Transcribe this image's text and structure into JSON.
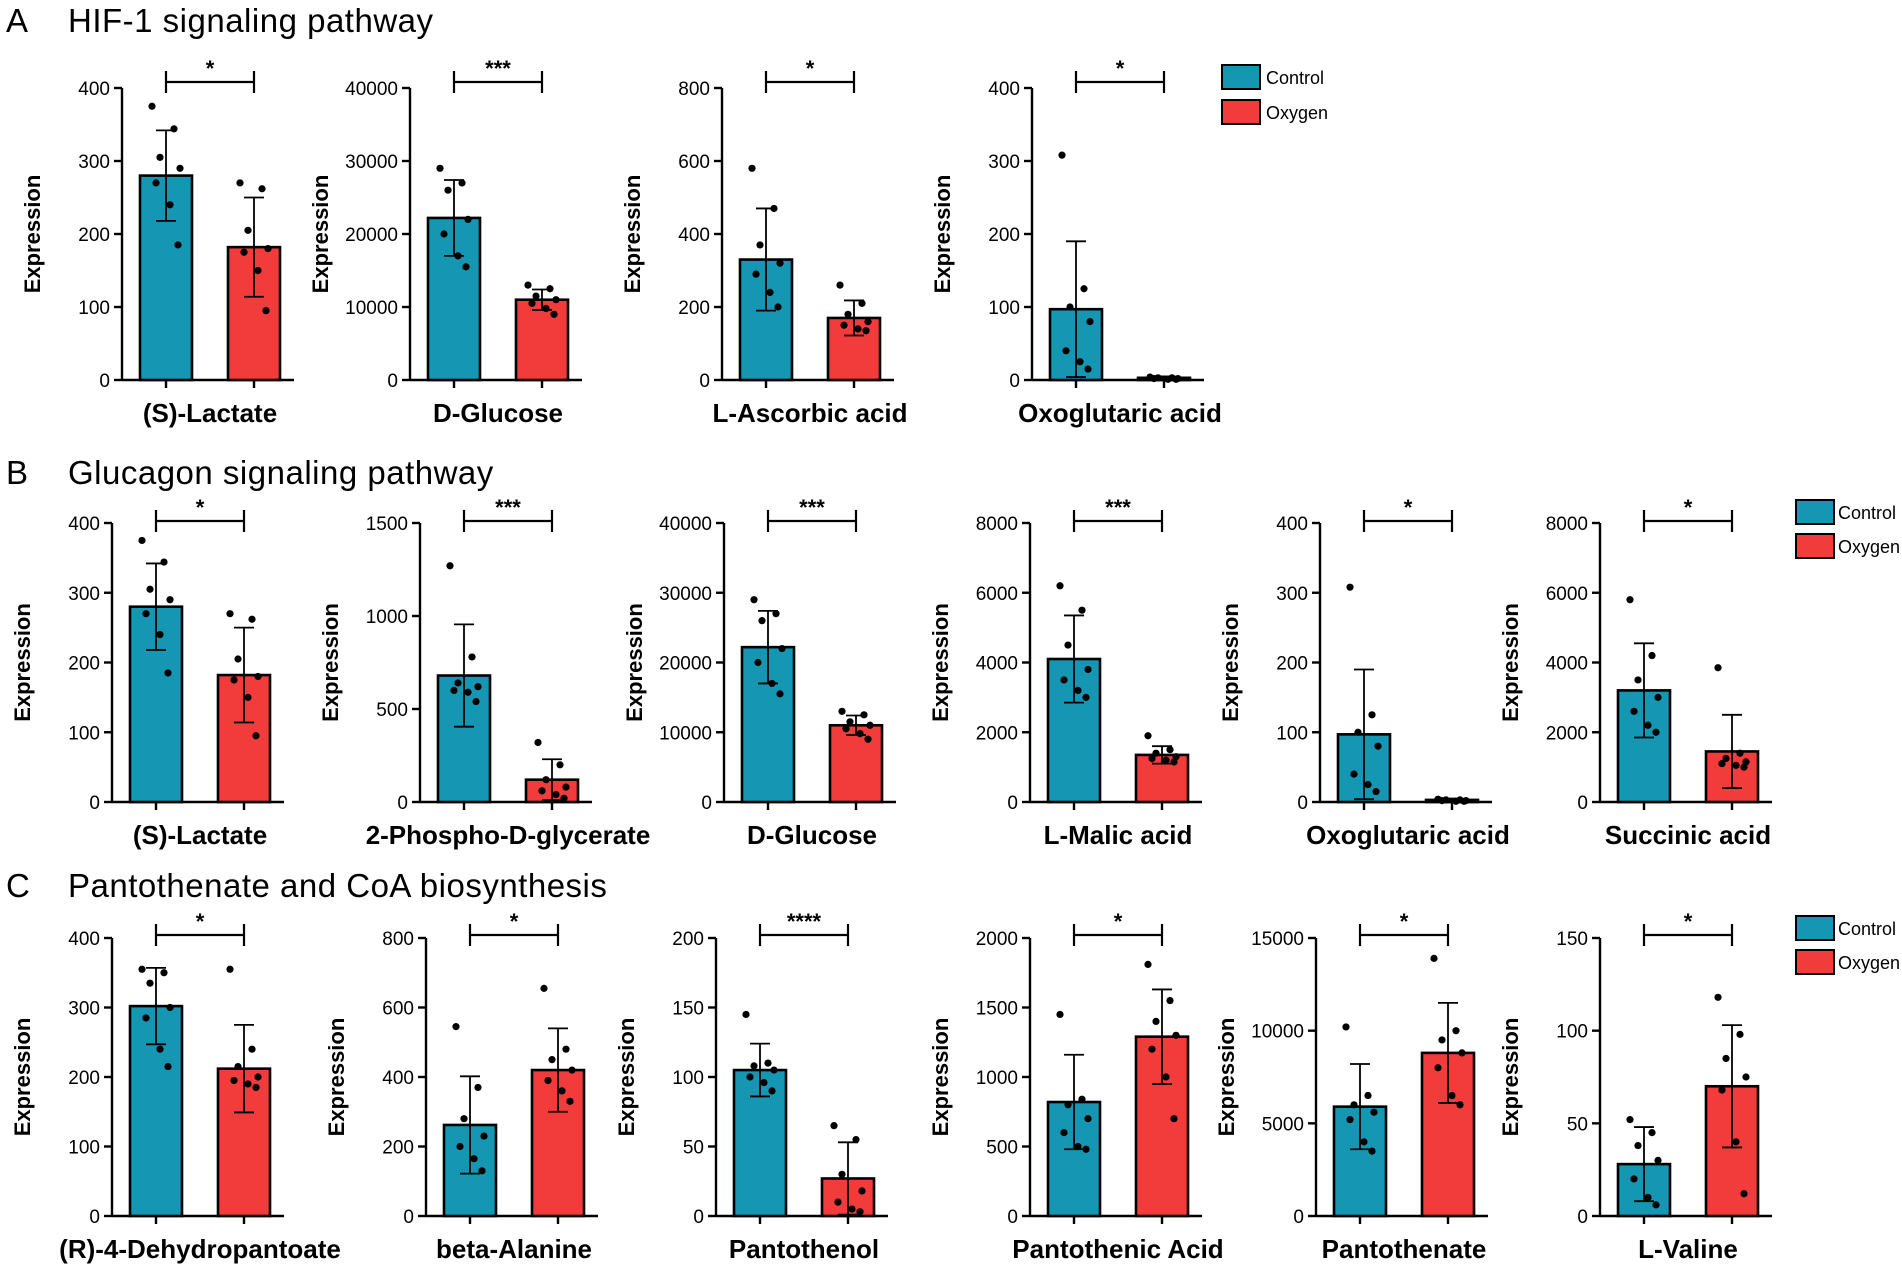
{
  "colors": {
    "control": "#1597B3",
    "oxygen": "#F23B3B",
    "axis": "#000000"
  },
  "panels": [
    {
      "letter": "A",
      "title": "HIF-1 signaling pathway",
      "legend": [
        "Control",
        "Oxygen"
      ]
    },
    {
      "letter": "B",
      "title": "Glucagon signaling pathway",
      "legend": [
        "Control",
        "Oxygen"
      ]
    },
    {
      "letter": "C",
      "title": "Pantothenate and CoA biosynthesis",
      "legend": [
        "Control",
        "Oxygen"
      ]
    }
  ],
  "chart_data": [
    {
      "id": "A1",
      "panel": "A",
      "type": "bar",
      "title": "(S)-Lactate",
      "ylabel": "Expression",
      "xlabel": "(S)-Lactate",
      "categories": [
        "Control",
        "Oxygen"
      ],
      "ylim": [
        0,
        400
      ],
      "yticks": [
        0,
        100,
        200,
        300,
        400
      ],
      "yticklabels": [
        "0",
        "100",
        "200",
        "300",
        "400"
      ],
      "values": [
        280,
        182
      ],
      "errors": [
        62,
        68
      ],
      "significance": "*",
      "points": [
        [
          375,
          344,
          305,
          290,
          270,
          240,
          185
        ],
        [
          270,
          262,
          205,
          180,
          175,
          150,
          95
        ]
      ]
    },
    {
      "id": "A2",
      "panel": "A",
      "type": "bar",
      "title": "D-Glucose",
      "ylabel": "Expression",
      "xlabel": "D-Glucose",
      "categories": [
        "Control",
        "Oxygen"
      ],
      "ylim": [
        0,
        40000
      ],
      "yticks": [
        0,
        10000,
        20000,
        30000,
        40000
      ],
      "yticklabels": [
        "0",
        "10000",
        "20000",
        "30000",
        "40000"
      ],
      "values": [
        22200,
        11000
      ],
      "errors": [
        5200,
        1400
      ],
      "significance": "***",
      "points": [
        [
          29000,
          27000,
          26000,
          22000,
          20000,
          17000,
          15500
        ],
        [
          13000,
          12500,
          11500,
          11000,
          10500,
          9800,
          9000
        ]
      ]
    },
    {
      "id": "A3",
      "panel": "A",
      "type": "bar",
      "title": "L-Ascorbic acid",
      "ylabel": "Expression",
      "xlabel": "L-Ascorbic acid",
      "categories": [
        "Control",
        "Oxygen"
      ],
      "ylim": [
        0,
        800
      ],
      "yticks": [
        0,
        200,
        400,
        600,
        800
      ],
      "yticklabels": [
        "0",
        "200",
        "400",
        "600",
        "800"
      ],
      "values": [
        330,
        170
      ],
      "errors": [
        140,
        48
      ],
      "significance": "*",
      "points": [
        [
          580,
          470,
          370,
          320,
          290,
          240,
          200
        ],
        [
          260,
          210,
          180,
          160,
          150,
          140,
          135
        ]
      ]
    },
    {
      "id": "A4",
      "panel": "A",
      "type": "bar",
      "title": "Oxoglutaric acid",
      "ylabel": "Expression",
      "xlabel": "Oxoglutaric acid",
      "categories": [
        "Control",
        "Oxygen"
      ],
      "ylim": [
        0,
        400
      ],
      "yticks": [
        0,
        100,
        200,
        300,
        400
      ],
      "yticklabels": [
        "0",
        "100",
        "200",
        "300",
        "400"
      ],
      "values": [
        97,
        3
      ],
      "errors": [
        93,
        2
      ],
      "significance": "*",
      "points": [
        [
          308,
          125,
          100,
          80,
          40,
          25,
          15
        ],
        [
          4,
          3,
          3,
          2,
          2,
          1,
          1
        ]
      ]
    },
    {
      "id": "B1",
      "panel": "B",
      "type": "bar",
      "title": "(S)-Lactate",
      "ylabel": "Expression",
      "xlabel": "(S)-Lactate",
      "categories": [
        "Control",
        "Oxygen"
      ],
      "ylim": [
        0,
        400
      ],
      "yticks": [
        0,
        100,
        200,
        300,
        400
      ],
      "yticklabels": [
        "0",
        "100",
        "200",
        "300",
        "400"
      ],
      "values": [
        280,
        182
      ],
      "errors": [
        62,
        68
      ],
      "significance": "*",
      "points": [
        [
          375,
          344,
          305,
          290,
          270,
          240,
          185
        ],
        [
          270,
          262,
          205,
          180,
          175,
          150,
          95
        ]
      ]
    },
    {
      "id": "B2",
      "panel": "B",
      "type": "bar",
      "title": "2-Phospho-D-glycerate",
      "ylabel": "Expression",
      "xlabel": "2-Phospho-D-glycerate",
      "categories": [
        "Control",
        "Oxygen"
      ],
      "ylim": [
        0,
        1500
      ],
      "yticks": [
        0,
        500,
        1000,
        1500
      ],
      "yticklabels": [
        "0",
        "500",
        "1000",
        "1500"
      ],
      "values": [
        680,
        120
      ],
      "errors": [
        275,
        110
      ],
      "significance": "***",
      "points": [
        [
          1270,
          780,
          640,
          620,
          600,
          590,
          540
        ],
        [
          320,
          200,
          120,
          80,
          60,
          40,
          20
        ]
      ]
    },
    {
      "id": "B3",
      "panel": "B",
      "type": "bar",
      "title": "D-Glucose",
      "ylabel": "Expression",
      "xlabel": "D-Glucose",
      "categories": [
        "Control",
        "Oxygen"
      ],
      "ylim": [
        0,
        40000
      ],
      "yticks": [
        0,
        10000,
        20000,
        30000,
        40000
      ],
      "yticklabels": [
        "0",
        "10000",
        "20000",
        "30000",
        "40000"
      ],
      "values": [
        22200,
        11000
      ],
      "errors": [
        5200,
        1400
      ],
      "significance": "***",
      "points": [
        [
          29000,
          27000,
          26000,
          22000,
          20000,
          17000,
          15500
        ],
        [
          13000,
          12500,
          11500,
          11000,
          10500,
          9800,
          9000
        ]
      ]
    },
    {
      "id": "B4",
      "panel": "B",
      "type": "bar",
      "title": "L-Malic acid",
      "ylabel": "Expression",
      "xlabel": "L-Malic acid",
      "categories": [
        "Control",
        "Oxygen"
      ],
      "ylim": [
        0,
        8000
      ],
      "yticks": [
        0,
        2000,
        4000,
        6000,
        8000
      ],
      "yticklabels": [
        "0",
        "2000",
        "4000",
        "6000",
        "8000"
      ],
      "values": [
        4100,
        1350
      ],
      "errors": [
        1250,
        250
      ],
      "significance": "***",
      "points": [
        [
          6200,
          5500,
          4500,
          3800,
          3500,
          3200,
          3000
        ],
        [
          1900,
          1500,
          1400,
          1300,
          1250,
          1200,
          1150
        ]
      ]
    },
    {
      "id": "B5",
      "panel": "B",
      "type": "bar",
      "title": "Oxoglutaric acid",
      "ylabel": "Expression",
      "xlabel": "Oxoglutaric acid",
      "categories": [
        "Control",
        "Oxygen"
      ],
      "ylim": [
        0,
        400
      ],
      "yticks": [
        0,
        100,
        200,
        300,
        400
      ],
      "yticklabels": [
        "0",
        "100",
        "200",
        "300",
        "400"
      ],
      "values": [
        97,
        3
      ],
      "errors": [
        93,
        2
      ],
      "significance": "*",
      "points": [
        [
          308,
          125,
          100,
          80,
          40,
          25,
          15
        ],
        [
          4,
          3,
          3,
          2,
          2,
          1,
          1
        ]
      ]
    },
    {
      "id": "B6",
      "panel": "B",
      "type": "bar",
      "title": "Succinic acid",
      "ylabel": "Expression",
      "xlabel": "Succinic acid",
      "categories": [
        "Control",
        "Oxygen"
      ],
      "ylim": [
        0,
        8000
      ],
      "yticks": [
        0,
        2000,
        4000,
        6000,
        8000
      ],
      "yticklabels": [
        "0",
        "2000",
        "4000",
        "6000",
        "8000"
      ],
      "values": [
        3200,
        1450
      ],
      "errors": [
        1350,
        1050
      ],
      "significance": "*",
      "points": [
        [
          5800,
          4200,
          3500,
          3000,
          2600,
          2200,
          2000
        ],
        [
          3850,
          1400,
          1250,
          1150,
          1100,
          1050,
          1000
        ]
      ]
    },
    {
      "id": "C1",
      "panel": "C",
      "type": "bar",
      "title": "(R)-4-Dehydropantoate",
      "ylabel": "Expression",
      "xlabel": "(R)-4-Dehydropantoate",
      "categories": [
        "Control",
        "Oxygen"
      ],
      "ylim": [
        0,
        400
      ],
      "yticks": [
        0,
        100,
        200,
        300,
        400
      ],
      "yticklabels": [
        "0",
        "100",
        "200",
        "300",
        "400"
      ],
      "values": [
        302,
        212
      ],
      "errors": [
        55,
        63
      ],
      "significance": "*",
      "points": [
        [
          355,
          350,
          335,
          300,
          285,
          240,
          215
        ],
        [
          355,
          240,
          215,
          200,
          195,
          190,
          185
        ]
      ]
    },
    {
      "id": "C2",
      "panel": "C",
      "type": "bar",
      "title": "beta-Alanine",
      "ylabel": "Expression",
      "xlabel": "beta-Alanine",
      "categories": [
        "Control",
        "Oxygen"
      ],
      "ylim": [
        0,
        800
      ],
      "yticks": [
        0,
        200,
        400,
        600,
        800
      ],
      "yticklabels": [
        "0",
        "200",
        "400",
        "600",
        "800"
      ],
      "values": [
        262,
        420
      ],
      "errors": [
        140,
        120
      ],
      "significance": "*",
      "points": [
        [
          545,
          370,
          280,
          230,
          200,
          165,
          130
        ],
        [
          655,
          480,
          450,
          420,
          390,
          360,
          330
        ]
      ]
    },
    {
      "id": "C3",
      "panel": "C",
      "type": "bar",
      "title": "Pantothenol",
      "ylabel": "Expression",
      "xlabel": "Pantothenol",
      "categories": [
        "Control",
        "Oxygen"
      ],
      "ylim": [
        0,
        200
      ],
      "yticks": [
        0,
        50,
        100,
        150,
        200
      ],
      "yticklabels": [
        "0",
        "50",
        "100",
        "150",
        "200"
      ],
      "values": [
        105,
        27
      ],
      "errors": [
        19,
        26
      ],
      "significance": "****",
      "points": [
        [
          145,
          110,
          108,
          105,
          100,
          96,
          90
        ],
        [
          65,
          55,
          30,
          18,
          10,
          5,
          3
        ]
      ]
    },
    {
      "id": "C4",
      "panel": "C",
      "type": "bar",
      "title": "Pantothenic Acid",
      "ylabel": "Expression",
      "xlabel": "Pantothenic Acid",
      "categories": [
        "Control",
        "Oxygen"
      ],
      "ylim": [
        0,
        2000
      ],
      "yticks": [
        0,
        500,
        1000,
        1500,
        2000
      ],
      "yticklabels": [
        "0",
        "500",
        "1000",
        "1500",
        "2000"
      ],
      "values": [
        820,
        1290
      ],
      "errors": [
        340,
        340
      ],
      "significance": "*",
      "points": [
        [
          1450,
          840,
          800,
          700,
          600,
          500,
          480
        ],
        [
          1810,
          1550,
          1400,
          1300,
          1200,
          1000,
          700
        ]
      ]
    },
    {
      "id": "C5",
      "panel": "C",
      "type": "bar",
      "title": "Pantothenate",
      "ylabel": "Expression",
      "xlabel": "Pantothenate",
      "categories": [
        "Control",
        "Oxygen"
      ],
      "ylim": [
        0,
        15000
      ],
      "yticks": [
        0,
        5000,
        10000,
        15000
      ],
      "yticklabels": [
        "0",
        "5000",
        "10000",
        "15000"
      ],
      "values": [
        5900,
        8800
      ],
      "errors": [
        2300,
        2700
      ],
      "significance": "*",
      "points": [
        [
          10200,
          6500,
          6000,
          5600,
          5200,
          4000,
          3500
        ],
        [
          13900,
          10000,
          9500,
          8800,
          8000,
          6500,
          6000
        ]
      ]
    },
    {
      "id": "C6",
      "panel": "C",
      "type": "bar",
      "title": "L-Valine",
      "ylabel": "Expression",
      "xlabel": "L-Valine",
      "categories": [
        "Control",
        "Oxygen"
      ],
      "ylim": [
        0,
        150
      ],
      "yticks": [
        0,
        50,
        100,
        150
      ],
      "yticklabels": [
        "0",
        "50",
        "100",
        "150"
      ],
      "values": [
        28,
        70
      ],
      "errors": [
        20,
        33
      ],
      "significance": "*",
      "points": [
        [
          52,
          45,
          38,
          30,
          20,
          10,
          6
        ],
        [
          118,
          98,
          85,
          75,
          68,
          40,
          12
        ]
      ]
    }
  ]
}
